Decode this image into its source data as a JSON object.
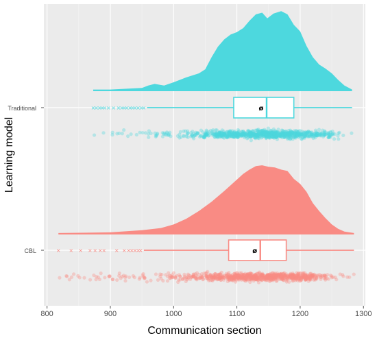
{
  "chart_data": {
    "type": "raincloud",
    "title": "",
    "xlabel": "Communication section",
    "ylabel": "Learning model",
    "xlim": [
      795,
      1303
    ],
    "x_ticks": [
      "800",
      "900",
      "1000",
      "1100",
      "1200",
      "1300"
    ],
    "x_tick_values": [
      800,
      900,
      1000,
      1100,
      1200,
      1300
    ],
    "categories": [
      "Traditional",
      "CBL"
    ],
    "grid": true,
    "legend": "none",
    "mean_marker": "ø",
    "series": [
      {
        "category": "Traditional",
        "color": "#4dd8de",
        "box": {
          "q1": 1095,
          "median": 1147,
          "q3": 1190,
          "whisker_low": 958,
          "whisker_high": 1282
        },
        "outliers": [
          873,
          878,
          883,
          887,
          891,
          897,
          905,
          913,
          918,
          922,
          926,
          931,
          935,
          939,
          944,
          949,
          953
        ],
        "density": [
          [
            873,
            0.02
          ],
          [
            900,
            0.02
          ],
          [
            950,
            0.04
          ],
          [
            960,
            0.07
          ],
          [
            970,
            0.09
          ],
          [
            985,
            0.07
          ],
          [
            1000,
            0.11
          ],
          [
            1020,
            0.17
          ],
          [
            1040,
            0.22
          ],
          [
            1050,
            0.27
          ],
          [
            1060,
            0.42
          ],
          [
            1070,
            0.55
          ],
          [
            1080,
            0.64
          ],
          [
            1090,
            0.7
          ],
          [
            1100,
            0.73
          ],
          [
            1110,
            0.78
          ],
          [
            1120,
            0.87
          ],
          [
            1130,
            0.95
          ],
          [
            1140,
            0.97
          ],
          [
            1148,
            0.9
          ],
          [
            1158,
            0.96
          ],
          [
            1170,
            0.99
          ],
          [
            1180,
            0.95
          ],
          [
            1190,
            0.82
          ],
          [
            1200,
            0.74
          ],
          [
            1210,
            0.56
          ],
          [
            1220,
            0.42
          ],
          [
            1230,
            0.33
          ],
          [
            1240,
            0.28
          ],
          [
            1250,
            0.22
          ],
          [
            1260,
            0.14
          ],
          [
            1270,
            0.07
          ],
          [
            1282,
            0.02
          ]
        ]
      },
      {
        "category": "CBL",
        "color": "#f98b84",
        "box": {
          "q1": 1087,
          "median": 1137,
          "q3": 1178,
          "whisker_low": 953,
          "whisker_high": 1285
        },
        "outliers": [
          818,
          838,
          853,
          868,
          876,
          884,
          890,
          910,
          922,
          929,
          934,
          939,
          944,
          948
        ],
        "density": [
          [
            818,
            0.02
          ],
          [
            900,
            0.03
          ],
          [
            950,
            0.06
          ],
          [
            980,
            0.09
          ],
          [
            1000,
            0.14
          ],
          [
            1020,
            0.22
          ],
          [
            1040,
            0.33
          ],
          [
            1060,
            0.46
          ],
          [
            1080,
            0.61
          ],
          [
            1095,
            0.73
          ],
          [
            1110,
            0.85
          ],
          [
            1120,
            0.91
          ],
          [
            1130,
            0.96
          ],
          [
            1140,
            0.97
          ],
          [
            1150,
            0.95
          ],
          [
            1160,
            0.94
          ],
          [
            1170,
            0.91
          ],
          [
            1180,
            0.89
          ],
          [
            1190,
            0.78
          ],
          [
            1200,
            0.71
          ],
          [
            1210,
            0.6
          ],
          [
            1220,
            0.44
          ],
          [
            1230,
            0.33
          ],
          [
            1240,
            0.23
          ],
          [
            1250,
            0.14
          ],
          [
            1260,
            0.08
          ],
          [
            1270,
            0.04
          ],
          [
            1285,
            0.02
          ]
        ]
      }
    ]
  }
}
